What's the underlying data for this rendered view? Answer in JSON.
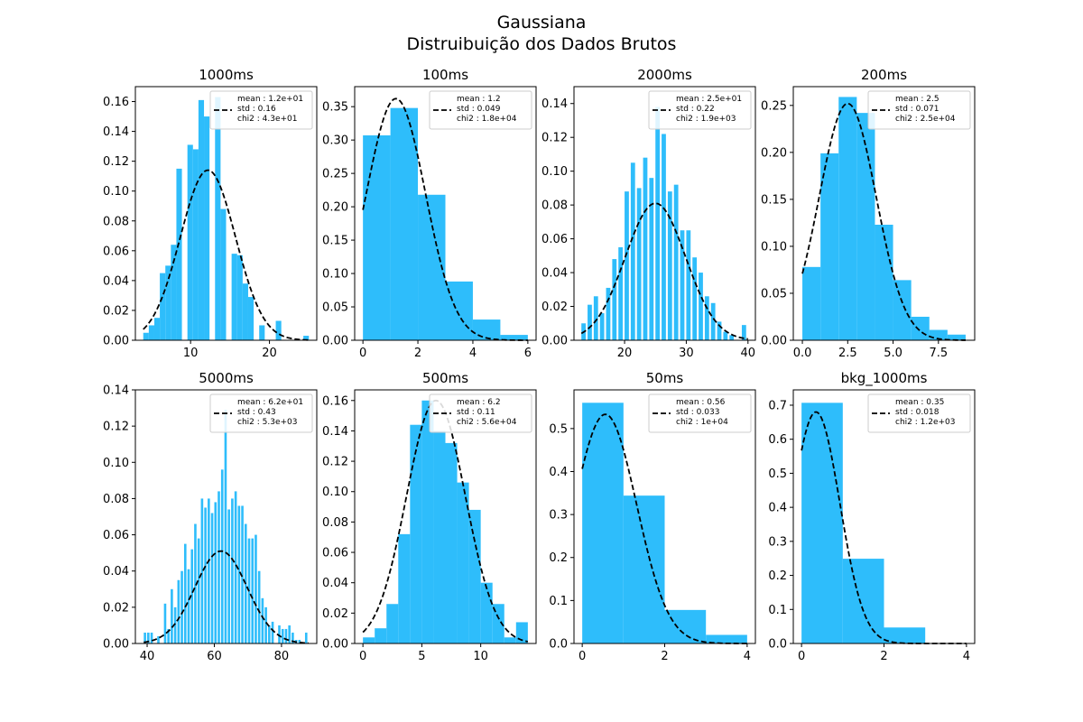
{
  "figure": {
    "title_line1": "Gaussiana",
    "title_line2": "Distruibuição dos Dados Brutos",
    "bar_color": "#2ebdfb",
    "fit_color": "#000000"
  },
  "chart_data": [
    {
      "type": "bar",
      "title": "1000ms",
      "xlim": [
        3.0,
        26.0
      ],
      "ylim": [
        0,
        0.17
      ],
      "xticks": [
        10,
        20
      ],
      "yticks": [
        0.0,
        0.02,
        0.04,
        0.06,
        0.08,
        0.1,
        0.12,
        0.14,
        0.16
      ],
      "xtick_labels": [
        "10",
        "20"
      ],
      "ytick_labels": [
        "0.00",
        "0.02",
        "0.04",
        "0.06",
        "0.08",
        "0.10",
        "0.12",
        "0.14",
        "0.16"
      ],
      "bars": [
        {
          "x0": 4.0,
          "x1": 4.7,
          "h": 0.005
        },
        {
          "x0": 4.7,
          "x1": 5.4,
          "h": 0.01
        },
        {
          "x0": 5.4,
          "x1": 6.1,
          "h": 0.015
        },
        {
          "x0": 6.1,
          "x1": 6.8,
          "h": 0.045
        },
        {
          "x0": 6.8,
          "x1": 7.5,
          "h": 0.05
        },
        {
          "x0": 7.5,
          "x1": 8.2,
          "h": 0.064
        },
        {
          "x0": 8.2,
          "x1": 8.9,
          "h": 0.115
        },
        {
          "x0": 9.6,
          "x1": 10.3,
          "h": 0.131
        },
        {
          "x0": 10.3,
          "x1": 11.0,
          "h": 0.128
        },
        {
          "x0": 11.0,
          "x1": 11.7,
          "h": 0.161
        },
        {
          "x0": 11.7,
          "x1": 12.4,
          "h": 0.15
        },
        {
          "x0": 13.1,
          "x1": 13.8,
          "h": 0.163
        },
        {
          "x0": 13.8,
          "x1": 14.5,
          "h": 0.088
        },
        {
          "x0": 15.2,
          "x1": 15.9,
          "h": 0.058
        },
        {
          "x0": 15.9,
          "x1": 16.6,
          "h": 0.057
        },
        {
          "x0": 16.6,
          "x1": 17.3,
          "h": 0.038
        },
        {
          "x0": 17.3,
          "x1": 18.0,
          "h": 0.029
        },
        {
          "x0": 18.7,
          "x1": 19.4,
          "h": 0.01
        },
        {
          "x0": 20.8,
          "x1": 21.5,
          "h": 0.013
        },
        {
          "x0": 24.3,
          "x1": 25.0,
          "h": 0.003
        }
      ],
      "fit": {
        "mean": 12.2,
        "sigma": 3.5,
        "amp": 0.114,
        "x_start": 4.0,
        "x_end": 25.0
      },
      "legend": [
        "mean : 1.2e+01",
        "std : 0.16",
        "chi2 : 4.3e+01"
      ]
    },
    {
      "type": "bar",
      "title": "100ms",
      "xlim": [
        -0.3,
        6.3
      ],
      "ylim": [
        0,
        0.38
      ],
      "xticks": [
        0,
        2,
        4,
        6
      ],
      "yticks": [
        0.0,
        0.05,
        0.1,
        0.15,
        0.2,
        0.25,
        0.3,
        0.35
      ],
      "xtick_labels": [
        "0",
        "2",
        "4",
        "6"
      ],
      "ytick_labels": [
        "0.00",
        "0.05",
        "0.10",
        "0.15",
        "0.20",
        "0.25",
        "0.30",
        "0.35"
      ],
      "bars": [
        {
          "x0": 0,
          "x1": 1,
          "h": 0.307
        },
        {
          "x0": 1,
          "x1": 2,
          "h": 0.348
        },
        {
          "x0": 2,
          "x1": 3,
          "h": 0.218
        },
        {
          "x0": 3,
          "x1": 4,
          "h": 0.088
        },
        {
          "x0": 4,
          "x1": 5,
          "h": 0.031
        },
        {
          "x0": 5,
          "x1": 6,
          "h": 0.008
        }
      ],
      "fit": {
        "mean": 1.2,
        "sigma": 1.08,
        "amp": 0.362,
        "x_start": 0.0,
        "x_end": 6.0
      },
      "legend": [
        "mean : 1.2",
        "std : 0.049",
        "chi2 : 1.8e+04"
      ]
    },
    {
      "type": "bar",
      "title": "2000ms",
      "xlim": [
        11.8,
        41.2
      ],
      "ylim": [
        0,
        0.15
      ],
      "xticks": [
        20,
        30,
        40
      ],
      "yticks": [
        0.0,
        0.02,
        0.04,
        0.06,
        0.08,
        0.1,
        0.12,
        0.14
      ],
      "xtick_labels": [
        "20",
        "30",
        "40"
      ],
      "ytick_labels": [
        "0.00",
        "0.02",
        "0.04",
        "0.06",
        "0.08",
        "0.10",
        "0.12",
        "0.14"
      ],
      "bars": [
        {
          "x0": 13.0,
          "x1": 13.7,
          "h": 0.01
        },
        {
          "x0": 14.0,
          "x1": 14.7,
          "h": 0.021
        },
        {
          "x0": 15.0,
          "x1": 15.7,
          "h": 0.026
        },
        {
          "x0": 16.0,
          "x1": 16.7,
          "h": 0.016
        },
        {
          "x0": 17.0,
          "x1": 17.7,
          "h": 0.031
        },
        {
          "x0": 18.0,
          "x1": 18.7,
          "h": 0.048
        },
        {
          "x0": 19.0,
          "x1": 19.7,
          "h": 0.055
        },
        {
          "x0": 20.0,
          "x1": 20.7,
          "h": 0.088
        },
        {
          "x0": 21.0,
          "x1": 21.7,
          "h": 0.105
        },
        {
          "x0": 22.0,
          "x1": 22.7,
          "h": 0.09
        },
        {
          "x0": 23.0,
          "x1": 23.7,
          "h": 0.108
        },
        {
          "x0": 24.0,
          "x1": 24.7,
          "h": 0.096
        },
        {
          "x0": 25.0,
          "x1": 25.7,
          "h": 0.138
        },
        {
          "x0": 26.0,
          "x1": 26.7,
          "h": 0.122
        },
        {
          "x0": 27.0,
          "x1": 27.7,
          "h": 0.088
        },
        {
          "x0": 28.0,
          "x1": 28.7,
          "h": 0.092
        },
        {
          "x0": 29.0,
          "x1": 29.7,
          "h": 0.065
        },
        {
          "x0": 30.0,
          "x1": 30.7,
          "h": 0.065
        },
        {
          "x0": 31.0,
          "x1": 31.7,
          "h": 0.049
        },
        {
          "x0": 32.0,
          "x1": 32.7,
          "h": 0.04
        },
        {
          "x0": 33.0,
          "x1": 33.7,
          "h": 0.026
        },
        {
          "x0": 34.0,
          "x1": 34.7,
          "h": 0.022
        },
        {
          "x0": 35.0,
          "x1": 35.7,
          "h": 0.011
        },
        {
          "x0": 36.0,
          "x1": 36.7,
          "h": 0.005
        },
        {
          "x0": 37.0,
          "x1": 37.7,
          "h": 0.003
        },
        {
          "x0": 39.0,
          "x1": 39.7,
          "h": 0.009
        }
      ],
      "fit": {
        "mean": 25.0,
        "sigma": 4.9,
        "amp": 0.081,
        "x_start": 13.0,
        "x_end": 40.0
      },
      "legend": [
        "mean : 2.5e+01",
        "std : 0.22",
        "chi2 : 1.9e+03"
      ]
    },
    {
      "type": "bar",
      "title": "200ms",
      "xlim": [
        -0.5,
        9.5
      ],
      "ylim": [
        0,
        0.27
      ],
      "xticks": [
        0,
        2.5,
        5.0,
        7.5
      ],
      "yticks": [
        0.0,
        0.05,
        0.1,
        0.15,
        0.2,
        0.25
      ],
      "xtick_labels": [
        "0.0",
        "2.5",
        "5.0",
        "7.5"
      ],
      "ytick_labels": [
        "0.00",
        "0.05",
        "0.10",
        "0.15",
        "0.20",
        "0.25"
      ],
      "bars": [
        {
          "x0": 0,
          "x1": 1,
          "h": 0.078
        },
        {
          "x0": 1,
          "x1": 2,
          "h": 0.199
        },
        {
          "x0": 2,
          "x1": 3,
          "h": 0.259
        },
        {
          "x0": 3,
          "x1": 4,
          "h": 0.242
        },
        {
          "x0": 4,
          "x1": 5,
          "h": 0.123
        },
        {
          "x0": 5,
          "x1": 6,
          "h": 0.064
        },
        {
          "x0": 6,
          "x1": 7,
          "h": 0.025
        },
        {
          "x0": 7,
          "x1": 8,
          "h": 0.011
        },
        {
          "x0": 8,
          "x1": 9,
          "h": 0.006
        }
      ],
      "fit": {
        "mean": 2.5,
        "sigma": 1.57,
        "amp": 0.252,
        "x_start": 0.0,
        "x_end": 9.0
      },
      "legend": [
        "mean : 2.5",
        "std : 0.071",
        "chi2 : 2.5e+04"
      ]
    },
    {
      "type": "bar",
      "title": "5000ms",
      "xlim": [
        36.5,
        90.5
      ],
      "ylim": [
        0,
        0.14
      ],
      "xticks": [
        40,
        60,
        80
      ],
      "yticks": [
        0.0,
        0.02,
        0.04,
        0.06,
        0.08,
        0.1,
        0.12,
        0.14
      ],
      "xtick_labels": [
        "40",
        "60",
        "80"
      ],
      "ytick_labels": [
        "0.00",
        "0.02",
        "0.04",
        "0.06",
        "0.08",
        "0.10",
        "0.12",
        "0.14"
      ],
      "bars": [
        {
          "x0": 39.0,
          "x1": 39.7,
          "h": 0.006
        },
        {
          "x0": 40.0,
          "x1": 40.7,
          "h": 0.006
        },
        {
          "x0": 41.0,
          "x1": 41.7,
          "h": 0.006
        },
        {
          "x0": 43.0,
          "x1": 43.7,
          "h": 0.004
        },
        {
          "x0": 45.0,
          "x1": 45.7,
          "h": 0.022
        },
        {
          "x0": 46.0,
          "x1": 46.7,
          "h": 0.008
        },
        {
          "x0": 47.0,
          "x1": 47.7,
          "h": 0.03
        },
        {
          "x0": 48.0,
          "x1": 48.7,
          "h": 0.02
        },
        {
          "x0": 49.0,
          "x1": 49.7,
          "h": 0.035
        },
        {
          "x0": 50.0,
          "x1": 50.7,
          "h": 0.04
        },
        {
          "x0": 51.0,
          "x1": 51.7,
          "h": 0.055
        },
        {
          "x0": 52.0,
          "x1": 52.7,
          "h": 0.041
        },
        {
          "x0": 53.0,
          "x1": 53.7,
          "h": 0.052
        },
        {
          "x0": 54.0,
          "x1": 54.7,
          "h": 0.066
        },
        {
          "x0": 55.0,
          "x1": 55.7,
          "h": 0.058
        },
        {
          "x0": 56.0,
          "x1": 56.7,
          "h": 0.08
        },
        {
          "x0": 57.0,
          "x1": 57.7,
          "h": 0.075
        },
        {
          "x0": 58.0,
          "x1": 58.7,
          "h": 0.08
        },
        {
          "x0": 59.0,
          "x1": 59.7,
          "h": 0.072
        },
        {
          "x0": 60.0,
          "x1": 60.7,
          "h": 0.078
        },
        {
          "x0": 61.0,
          "x1": 61.7,
          "h": 0.084
        },
        {
          "x0": 62.0,
          "x1": 62.7,
          "h": 0.096
        },
        {
          "x0": 63.0,
          "x1": 63.7,
          "h": 0.129
        },
        {
          "x0": 64.0,
          "x1": 64.7,
          "h": 0.074
        },
        {
          "x0": 65.0,
          "x1": 65.7,
          "h": 0.08
        },
        {
          "x0": 66.0,
          "x1": 66.7,
          "h": 0.084
        },
        {
          "x0": 67.0,
          "x1": 67.7,
          "h": 0.076
        },
        {
          "x0": 68.0,
          "x1": 68.7,
          "h": 0.076
        },
        {
          "x0": 69.0,
          "x1": 69.7,
          "h": 0.066
        },
        {
          "x0": 70.0,
          "x1": 70.7,
          "h": 0.058
        },
        {
          "x0": 71.0,
          "x1": 71.7,
          "h": 0.058
        },
        {
          "x0": 72.0,
          "x1": 72.7,
          "h": 0.06
        },
        {
          "x0": 73.0,
          "x1": 73.7,
          "h": 0.04
        },
        {
          "x0": 74.0,
          "x1": 74.7,
          "h": 0.025
        },
        {
          "x0": 75.0,
          "x1": 75.7,
          "h": 0.02
        },
        {
          "x0": 76.0,
          "x1": 76.7,
          "h": 0.01
        },
        {
          "x0": 77.0,
          "x1": 77.7,
          "h": 0.012
        },
        {
          "x0": 79.0,
          "x1": 79.7,
          "h": 0.01
        },
        {
          "x0": 80.0,
          "x1": 80.7,
          "h": 0.008
        },
        {
          "x0": 81.0,
          "x1": 81.7,
          "h": 0.008
        },
        {
          "x0": 82.0,
          "x1": 82.7,
          "h": 0.01
        },
        {
          "x0": 83.0,
          "x1": 83.7,
          "h": 0.006
        },
        {
          "x0": 84.0,
          "x1": 84.7,
          "h": 0.002
        },
        {
          "x0": 85.0,
          "x1": 85.7,
          "h": 0.002
        },
        {
          "x0": 87.0,
          "x1": 87.7,
          "h": 0.006
        }
      ],
      "fit": {
        "mean": 62.0,
        "sigma": 7.8,
        "amp": 0.051,
        "x_start": 39.0,
        "x_end": 88.0
      },
      "legend": [
        "mean : 6.2e+01",
        "std : 0.43",
        "chi2 : 5.3e+03"
      ]
    },
    {
      "type": "bar",
      "title": "500ms",
      "xlim": [
        -0.7,
        14.7
      ],
      "ylim": [
        0,
        0.167
      ],
      "xticks": [
        0,
        5,
        10
      ],
      "yticks": [
        0.0,
        0.02,
        0.04,
        0.06,
        0.08,
        0.1,
        0.12,
        0.14,
        0.16
      ],
      "xtick_labels": [
        "0",
        "5",
        "10"
      ],
      "ytick_labels": [
        "0.00",
        "0.02",
        "0.04",
        "0.06",
        "0.08",
        "0.10",
        "0.12",
        "0.14",
        "0.16"
      ],
      "bars": [
        {
          "x0": 0,
          "x1": 1,
          "h": 0.004
        },
        {
          "x0": 1,
          "x1": 2,
          "h": 0.01
        },
        {
          "x0": 2,
          "x1": 3,
          "h": 0.026
        },
        {
          "x0": 3,
          "x1": 4,
          "h": 0.072
        },
        {
          "x0": 4,
          "x1": 5,
          "h": 0.144
        },
        {
          "x0": 5,
          "x1": 6,
          "h": 0.16
        },
        {
          "x0": 6,
          "x1": 7,
          "h": 0.14
        },
        {
          "x0": 7,
          "x1": 8,
          "h": 0.132
        },
        {
          "x0": 8,
          "x1": 9,
          "h": 0.106
        },
        {
          "x0": 9,
          "x1": 10,
          "h": 0.088
        },
        {
          "x0": 10,
          "x1": 11,
          "h": 0.04
        },
        {
          "x0": 11,
          "x1": 12,
          "h": 0.026
        },
        {
          "x0": 12,
          "x1": 13,
          "h": 0.004
        },
        {
          "x0": 13,
          "x1": 14,
          "h": 0.014
        }
      ],
      "fit": {
        "mean": 6.2,
        "sigma": 2.5,
        "amp": 0.16,
        "x_start": 0.0,
        "x_end": 14.0
      },
      "legend": [
        "mean : 6.2",
        "std : 0.11",
        "chi2 : 5.6e+04"
      ]
    },
    {
      "type": "bar",
      "title": "50ms",
      "xlim": [
        -0.2,
        4.2
      ],
      "ylim": [
        0,
        0.59
      ],
      "xticks": [
        0,
        2,
        4
      ],
      "yticks": [
        0.0,
        0.1,
        0.2,
        0.3,
        0.4,
        0.5
      ],
      "xtick_labels": [
        "0",
        "2",
        "4"
      ],
      "ytick_labels": [
        "0.0",
        "0.1",
        "0.2",
        "0.3",
        "0.4",
        "0.5"
      ],
      "bars": [
        {
          "x0": 0,
          "x1": 1,
          "h": 0.56
        },
        {
          "x0": 1,
          "x1": 2,
          "h": 0.344
        },
        {
          "x0": 2,
          "x1": 3,
          "h": 0.078
        },
        {
          "x0": 3,
          "x1": 4,
          "h": 0.02
        }
      ],
      "fit": {
        "mean": 0.56,
        "sigma": 0.76,
        "amp": 0.533,
        "x_start": 0.0,
        "x_end": 4.0
      },
      "legend": [
        "mean : 0.56",
        "std : 0.033",
        "chi2 : 1e+04"
      ]
    },
    {
      "type": "bar",
      "title": "bkg_1000ms",
      "xlim": [
        -0.2,
        4.2
      ],
      "ylim": [
        0,
        0.745
      ],
      "xticks": [
        0,
        2,
        4
      ],
      "yticks": [
        0.0,
        0.1,
        0.2,
        0.3,
        0.4,
        0.5,
        0.6,
        0.7
      ],
      "xtick_labels": [
        "0",
        "2",
        "4"
      ],
      "ytick_labels": [
        "0.0",
        "0.1",
        "0.2",
        "0.3",
        "0.4",
        "0.5",
        "0.6",
        "0.7"
      ],
      "bars": [
        {
          "x0": 0,
          "x1": 1,
          "h": 0.707
        },
        {
          "x0": 1,
          "x1": 2,
          "h": 0.249
        },
        {
          "x0": 2,
          "x1": 3,
          "h": 0.047
        }
      ],
      "fit": {
        "mean": 0.35,
        "sigma": 0.58,
        "amp": 0.68,
        "x_start": 0.0,
        "x_end": 4.0
      },
      "legend": [
        "mean : 0.35",
        "std : 0.018",
        "chi2 : 1.2e+03"
      ]
    }
  ]
}
